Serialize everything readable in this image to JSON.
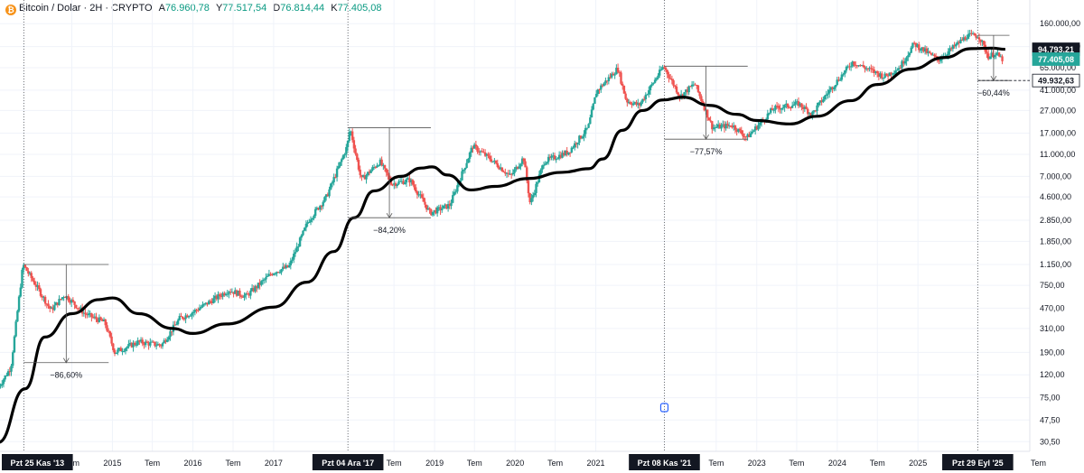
{
  "legend": {
    "symbol": "Bitcoin / Dolar · 2H · CRYPTO",
    "open_label": "A",
    "open": "76.960,78",
    "high_label": "Y",
    "high": "77.517,54",
    "low_label": "D",
    "low": "76.814,44",
    "close_label": "K",
    "close": "77.405,08"
  },
  "colors": {
    "up": "#26a69a",
    "down": "#ef5350",
    "ma": "#000000",
    "grid": "#f0f3fa",
    "axis_text": "#131722",
    "last_price_bg": "#26a69a",
    "ma_price_bg": "#131722"
  },
  "chart_data": {
    "type": "candlestick",
    "scale": "log",
    "ylim": [
      25,
      260000
    ],
    "price_ticks": [
      "160.000,00",
      "100.000,00",
      "65.000,00",
      "41.000,00",
      "27.000,00",
      "17.000,00",
      "11.000,00",
      "7.000,00",
      "4.600,00",
      "2.850,00",
      "1.850,00",
      "1.150,00",
      "750,00",
      "470,00",
      "310,00",
      "190,00",
      "120,00",
      "75,00",
      "47,50",
      "30,50"
    ],
    "price_tick_values": [
      160000,
      100000,
      65000,
      41000,
      27000,
      17000,
      11000,
      7000,
      4600,
      2850,
      1850,
      1150,
      750,
      470,
      310,
      190,
      120,
      75,
      47.5,
      30.5
    ],
    "time_ticks": [
      {
        "label": "Pzt 25 Kas '13",
        "date": "2013-11-25",
        "highlight": true
      },
      {
        "label": "Tem",
        "date": "2014-07-01"
      },
      {
        "label": "2015",
        "date": "2015-01-01"
      },
      {
        "label": "Tem",
        "date": "2015-07-01"
      },
      {
        "label": "2016",
        "date": "2016-01-01"
      },
      {
        "label": "Tem",
        "date": "2016-07-01"
      },
      {
        "label": "2017",
        "date": "2017-01-01"
      },
      {
        "label": "Pzt 04 Ara '17",
        "date": "2017-12-04",
        "highlight": true
      },
      {
        "label": "Tem",
        "date": "2018-07-01"
      },
      {
        "label": "2019",
        "date": "2019-01-01"
      },
      {
        "label": "Tem",
        "date": "2019-07-01"
      },
      {
        "label": "2020",
        "date": "2020-01-01"
      },
      {
        "label": "Tem",
        "date": "2020-07-01"
      },
      {
        "label": "2021",
        "date": "2021-01-01"
      },
      {
        "label": "Pzt 08 Kas '21",
        "date": "2021-11-08",
        "highlight": true
      },
      {
        "label": "Tem",
        "date": "2022-07-01"
      },
      {
        "label": "2023",
        "date": "2023-01-01"
      },
      {
        "label": "Tem",
        "date": "2023-07-01"
      },
      {
        "label": "2024",
        "date": "2024-01-01"
      },
      {
        "label": "Tem",
        "date": "2024-07-01"
      },
      {
        "label": "2025",
        "date": "2025-01-01"
      },
      {
        "label": "Pzt 29 Eyl '25",
        "date": "2025-09-29",
        "highlight": true
      },
      {
        "label": "Tem",
        "date": "2026-07-01"
      }
    ],
    "cycle_markers": [
      "2013-11-25",
      "2017-12-04",
      "2021-11-08",
      "2025-09-29"
    ],
    "price_path": [
      [
        "2013-08-01",
        90
      ],
      [
        "2013-10-01",
        140
      ],
      [
        "2013-11-25",
        1150
      ],
      [
        "2014-02-01",
        700
      ],
      [
        "2014-04-01",
        450
      ],
      [
        "2014-06-01",
        620
      ],
      [
        "2014-09-01",
        420
      ],
      [
        "2014-12-01",
        350
      ],
      [
        "2015-01-15",
        190
      ],
      [
        "2015-05-01",
        235
      ],
      [
        "2015-08-15",
        220
      ],
      [
        "2015-11-05",
        380
      ],
      [
        "2016-01-01",
        430
      ],
      [
        "2016-06-15",
        680
      ],
      [
        "2016-09-01",
        600
      ],
      [
        "2017-01-01",
        980
      ],
      [
        "2017-03-15",
        1100
      ],
      [
        "2017-06-10",
        2800
      ],
      [
        "2017-09-01",
        4600
      ],
      [
        "2017-12-04",
        13000
      ],
      [
        "2017-12-17",
        19000
      ],
      [
        "2018-02-06",
        6500
      ],
      [
        "2018-05-01",
        9500
      ],
      [
        "2018-06-25",
        6000
      ],
      [
        "2018-09-15",
        6500
      ],
      [
        "2018-11-20",
        4000
      ],
      [
        "2018-12-15",
        3300
      ],
      [
        "2019-03-15",
        3900
      ],
      [
        "2019-06-26",
        13000
      ],
      [
        "2019-09-15",
        10000
      ],
      [
        "2019-12-15",
        7000
      ],
      [
        "2020-02-12",
        10300
      ],
      [
        "2020-03-13",
        4000
      ],
      [
        "2020-05-15",
        9500
      ],
      [
        "2020-09-01",
        11500
      ],
      [
        "2020-12-01",
        19000
      ],
      [
        "2021-01-08",
        40000
      ],
      [
        "2021-04-14",
        64000
      ],
      [
        "2021-05-23",
        33000
      ],
      [
        "2021-07-20",
        30000
      ],
      [
        "2021-11-08",
        67000
      ],
      [
        "2022-01-22",
        36000
      ],
      [
        "2022-03-29",
        47000
      ],
      [
        "2022-06-18",
        19000
      ],
      [
        "2022-09-15",
        20000
      ],
      [
        "2022-11-21",
        15500
      ],
      [
        "2023-03-20",
        28000
      ],
      [
        "2023-07-14",
        31000
      ],
      [
        "2023-09-11",
        25000
      ],
      [
        "2023-12-05",
        42000
      ],
      [
        "2024-03-14",
        73000
      ],
      [
        "2024-08-05",
        54000
      ],
      [
        "2024-10-15",
        66000
      ],
      [
        "2024-12-17",
        106000
      ],
      [
        "2025-04-07",
        76000
      ],
      [
        "2025-08-14",
        124000
      ],
      [
        "2025-10-06",
        126000
      ],
      [
        "2025-11-21",
        81000
      ],
      [
        "2025-12-20",
        88000
      ],
      [
        "2026-01-20",
        77400
      ]
    ],
    "ma_path": [
      [
        "2013-08-01",
        30
      ],
      [
        "2013-12-01",
        90
      ],
      [
        "2014-03-01",
        260
      ],
      [
        "2014-07-01",
        420
      ],
      [
        "2014-11-01",
        560
      ],
      [
        "2015-01-01",
        580
      ],
      [
        "2015-05-01",
        420
      ],
      [
        "2015-10-01",
        310
      ],
      [
        "2016-01-01",
        280
      ],
      [
        "2016-06-01",
        340
      ],
      [
        "2017-01-01",
        480
      ],
      [
        "2017-06-01",
        800
      ],
      [
        "2017-10-01",
        1500
      ],
      [
        "2018-01-01",
        3000
      ],
      [
        "2018-04-01",
        5200
      ],
      [
        "2018-08-01",
        7000
      ],
      [
        "2018-11-01",
        8300
      ],
      [
        "2018-12-20",
        8500
      ],
      [
        "2019-03-01",
        7200
      ],
      [
        "2019-06-15",
        5300
      ],
      [
        "2019-10-01",
        5700
      ],
      [
        "2020-03-01",
        6700
      ],
      [
        "2020-08-01",
        7600
      ],
      [
        "2020-12-01",
        8200
      ],
      [
        "2021-02-01",
        10000
      ],
      [
        "2021-05-01",
        18000
      ],
      [
        "2021-08-01",
        27000
      ],
      [
        "2021-11-01",
        33500
      ],
      [
        "2022-02-01",
        35500
      ],
      [
        "2022-06-01",
        30000
      ],
      [
        "2022-10-01",
        25000
      ],
      [
        "2023-01-01",
        22000
      ],
      [
        "2023-06-01",
        20500
      ],
      [
        "2023-10-01",
        24000
      ],
      [
        "2024-03-01",
        33000
      ],
      [
        "2024-07-01",
        46000
      ],
      [
        "2024-12-01",
        63000
      ],
      [
        "2025-05-01",
        80000
      ],
      [
        "2025-09-01",
        96000
      ],
      [
        "2025-12-01",
        97000
      ],
      [
        "2026-02-01",
        94793
      ]
    ],
    "drawdowns": [
      {
        "label": "−86,60%",
        "start": "2013-11-25",
        "end": "2014-12-15",
        "high": 1150,
        "low": 154
      },
      {
        "label": "−84,20%",
        "start": "2017-12-04",
        "end": "2018-12-15",
        "high": 19000,
        "low": 3000
      },
      {
        "label": "−77,57%",
        "start": "2021-11-08",
        "end": "2022-11-21",
        "high": 67000,
        "low": 15000
      },
      {
        "label": "−60,44%",
        "start": "2025-09-29",
        "end": "2026-02-20",
        "high": 126000,
        "low": 49932.63
      }
    ],
    "price_labels": [
      {
        "label": "94.793,21",
        "value": 94793.21,
        "kind": "ma"
      },
      {
        "label": "77.405,08",
        "value": 77405.08,
        "kind": "last"
      },
      {
        "label": "49.932,63",
        "value": 49932.63,
        "kind": "level"
      }
    ]
  }
}
